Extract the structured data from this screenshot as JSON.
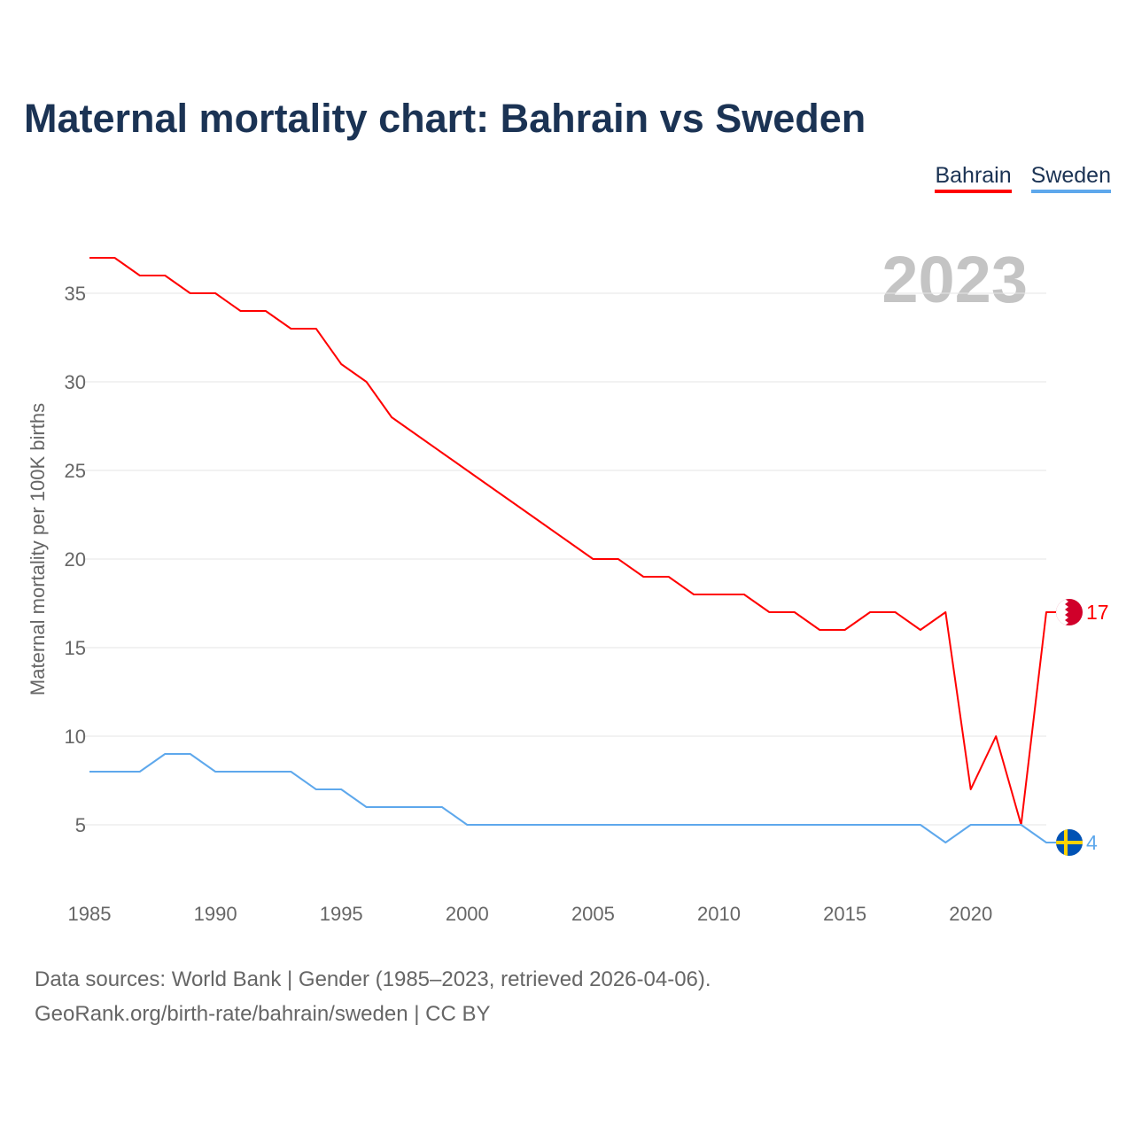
{
  "chart_data": {
    "type": "line",
    "title": "Maternal mortality chart: Bahrain vs Sweden",
    "ylabel": "Maternal mortality per 100K births",
    "xlabel": "",
    "year_label": "2023",
    "x": [
      1985,
      1986,
      1987,
      1988,
      1989,
      1990,
      1991,
      1992,
      1993,
      1994,
      1995,
      1996,
      1997,
      1998,
      1999,
      2000,
      2001,
      2002,
      2003,
      2004,
      2005,
      2006,
      2007,
      2008,
      2009,
      2010,
      2011,
      2012,
      2013,
      2014,
      2015,
      2016,
      2017,
      2018,
      2019,
      2020,
      2021,
      2022,
      2023
    ],
    "xticks": [
      "1985",
      "1990",
      "1995",
      "2000",
      "2005",
      "2010",
      "2015",
      "2020"
    ],
    "yticks": [
      "5",
      "10",
      "15",
      "20",
      "25",
      "30",
      "35"
    ],
    "xlim": [
      1985,
      2023
    ],
    "ylim": [
      0,
      37
    ],
    "grid": true,
    "legend_position": "top-right",
    "series": [
      {
        "name": "Bahrain",
        "color": "#ff0000",
        "end_label": "17",
        "values": [
          37,
          37,
          36,
          36,
          35,
          35,
          34,
          34,
          33,
          33,
          31,
          30,
          28,
          27,
          26,
          25,
          24,
          23,
          22,
          21,
          20,
          20,
          19,
          19,
          18,
          18,
          18,
          17,
          17,
          16,
          16,
          17,
          17,
          16,
          17,
          7,
          10,
          5,
          17
        ]
      },
      {
        "name": "Sweden",
        "color": "#5ea8ec",
        "end_label": "4",
        "values": [
          8,
          8,
          8,
          9,
          9,
          8,
          8,
          8,
          8,
          7,
          7,
          6,
          6,
          6,
          6,
          5,
          5,
          5,
          5,
          5,
          5,
          5,
          5,
          5,
          5,
          5,
          5,
          5,
          5,
          5,
          5,
          5,
          5,
          5,
          4,
          5,
          5,
          5,
          4
        ]
      }
    ]
  },
  "footer": {
    "line1": "Data sources: World Bank | Gender (1985–2023, retrieved 2026-04-06).",
    "line2": "GeoRank.org/birth-rate/bahrain/sweden | CC BY"
  }
}
